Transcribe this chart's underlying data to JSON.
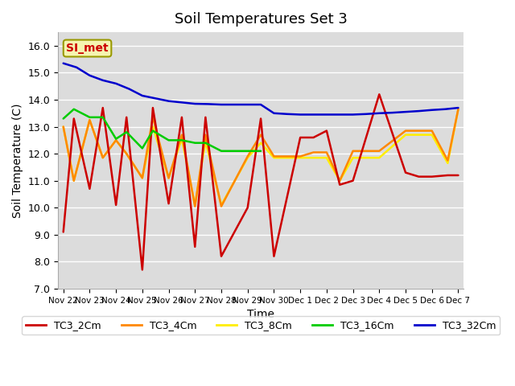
{
  "title": "Soil Temperatures Set 3",
  "xlabel": "Time",
  "ylabel": "Soil Temperature (C)",
  "ylim": [
    7.0,
    16.5
  ],
  "yticks": [
    7.0,
    8.0,
    9.0,
    10.0,
    11.0,
    12.0,
    13.0,
    14.0,
    15.0,
    16.0
  ],
  "background_color": "#e8e8e8",
  "annotation_text": "SI_met",
  "annotation_color": "#cc0000",
  "annotation_bg": "#f5f5b0",
  "annotation_border": "#999900",
  "xtick_labels": [
    "Nov 22",
    "Nov 23",
    "Nov 24",
    "Nov 25",
    "Nov 26",
    "Nov 27",
    "Nov 28",
    "Nov 29",
    "Nov 30",
    "Dec 1",
    "Dec 2",
    "Dec 3",
    "Dec 4",
    "Dec 5",
    "Dec 6",
    "Dec 7"
  ],
  "legend_colors": [
    "#cc0000",
    "#ff8800",
    "#ffee00",
    "#00cc00",
    "#0000cc"
  ],
  "legend_labels": [
    "TC3_2Cm",
    "TC3_4Cm",
    "TC3_8Cm",
    "TC3_16Cm",
    "TC3_32Cm"
  ],
  "tc2_x": [
    0,
    0.4,
    1,
    1.5,
    2,
    2.4,
    3,
    3.4,
    4,
    4.5,
    5,
    5.4,
    6,
    7,
    7.5,
    8,
    9,
    9.5,
    10,
    10.5,
    11,
    12,
    13,
    13.5,
    14,
    14.6,
    15
  ],
  "tc2_y": [
    9.1,
    13.3,
    10.7,
    13.7,
    10.1,
    13.35,
    7.7,
    13.7,
    10.15,
    13.35,
    8.55,
    13.35,
    8.2,
    10.0,
    13.3,
    8.2,
    12.6,
    12.6,
    12.85,
    10.85,
    11.0,
    14.2,
    11.3,
    11.15,
    11.15,
    11.2,
    11.2
  ],
  "tc4_x": [
    0,
    0.4,
    1,
    1.5,
    2,
    2.4,
    3,
    3.4,
    4,
    4.5,
    5,
    5.4,
    6,
    7,
    7.5,
    8,
    9,
    9.5,
    10,
    10.5,
    11,
    12,
    13,
    13.5,
    14,
    14.6,
    15
  ],
  "tc4_y": [
    13.0,
    11.0,
    13.25,
    11.85,
    12.5,
    12.0,
    11.1,
    13.35,
    11.1,
    12.7,
    10.05,
    12.7,
    10.05,
    11.9,
    12.7,
    11.9,
    11.9,
    12.05,
    12.05,
    11.0,
    12.1,
    12.1,
    12.85,
    12.85,
    12.85,
    11.75,
    13.65
  ],
  "tc8_x": [
    0,
    0.4,
    1,
    1.5,
    2,
    2.4,
    3,
    3.4,
    4,
    4.5,
    5,
    5.4,
    6,
    7,
    7.5,
    8,
    9,
    9.5,
    10,
    10.5,
    11,
    12,
    13,
    13.5,
    14,
    14.6,
    15
  ],
  "tc8_y": [
    13.0,
    11.0,
    13.25,
    11.85,
    12.5,
    12.0,
    11.1,
    13.0,
    11.1,
    12.55,
    10.1,
    12.45,
    10.1,
    11.85,
    12.4,
    11.85,
    11.85,
    11.85,
    11.85,
    11.0,
    11.85,
    11.85,
    12.7,
    12.7,
    12.7,
    11.65,
    13.65
  ],
  "tc16_x": [
    0,
    0.4,
    1,
    1.5,
    2,
    2.4,
    3,
    3.4,
    4,
    4.5,
    5,
    5.4,
    6,
    6.5,
    7,
    7.5
  ],
  "tc16_y": [
    13.3,
    13.65,
    13.35,
    13.35,
    12.55,
    12.8,
    12.2,
    12.85,
    12.5,
    12.5,
    12.4,
    12.4,
    12.1,
    12.1,
    12.1,
    12.1
  ],
  "tc32_x": [
    0,
    0.5,
    1,
    1.5,
    2,
    2.5,
    3,
    3.5,
    4,
    4.5,
    5,
    5.5,
    6,
    6.5,
    7,
    7.5,
    8,
    8.5,
    9,
    9.5,
    10,
    10.5,
    11,
    11.5,
    12,
    12.5,
    13,
    13.5,
    14,
    14.5,
    15
  ],
  "tc32_y": [
    15.35,
    15.2,
    14.9,
    14.72,
    14.6,
    14.4,
    14.15,
    14.05,
    13.95,
    13.9,
    13.85,
    13.84,
    13.82,
    13.82,
    13.82,
    13.82,
    13.5,
    13.47,
    13.45,
    13.45,
    13.45,
    13.45,
    13.45,
    13.47,
    13.5,
    13.52,
    13.55,
    13.58,
    13.62,
    13.65,
    13.7
  ]
}
